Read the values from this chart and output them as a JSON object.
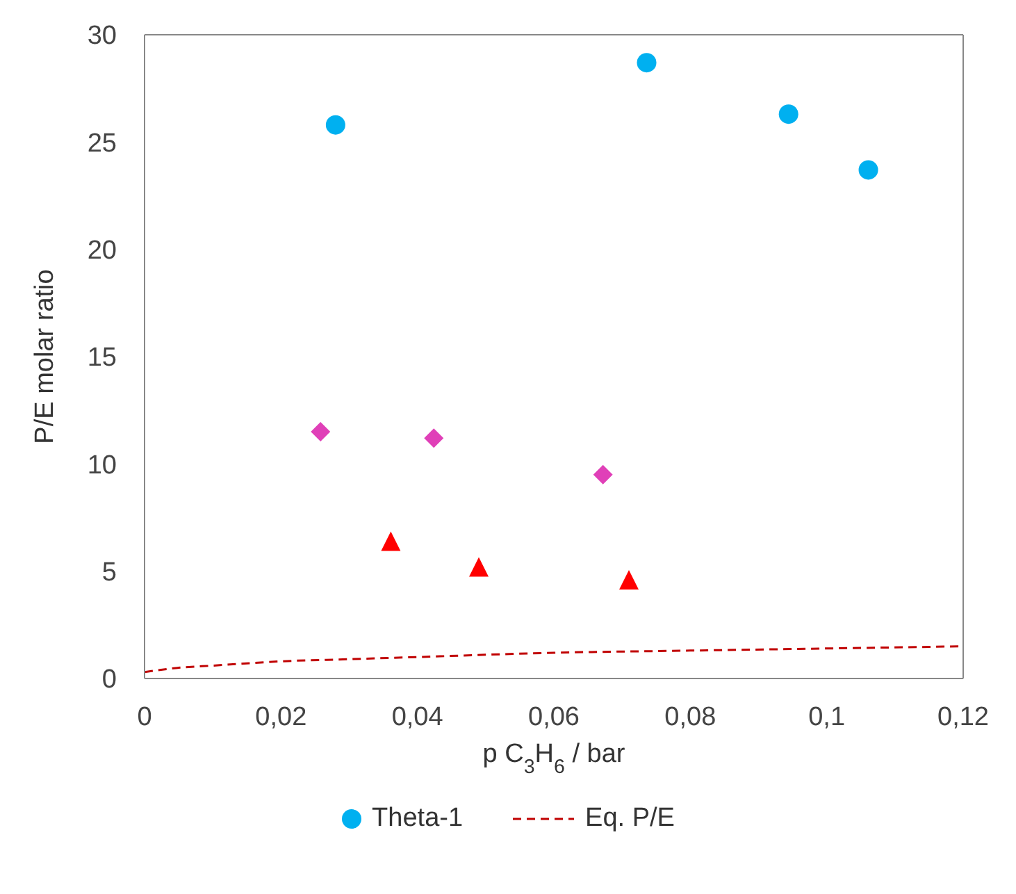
{
  "chart_data": {
    "type": "scatter",
    "xlabel": "p C$_{3}$H$_{6}$ / bar",
    "ylabel": "P/E molar ratio",
    "xlim": [
      0,
      0.12
    ],
    "xticks": [
      0,
      {
        "value": 0.02,
        "label": "0,02"
      },
      {
        "value": 0.04,
        "label": "0,04"
      },
      {
        "value": 0.06,
        "label": "0,06"
      },
      {
        "value": 0.08,
        "label": "0,08"
      },
      {
        "value": 0.1,
        "label": "0,1"
      },
      {
        "value": 0.12,
        "label": "0,12"
      }
    ],
    "ylim": [
      0,
      30
    ],
    "yticks": [
      0,
      5,
      10,
      15,
      20,
      25,
      30
    ],
    "grid": false,
    "legend": "bottom",
    "series": [
      {
        "name": "Theta-1",
        "color": "#00b0f0",
        "marker": "circle",
        "x": [
          0.028,
          0.0736,
          0.0944,
          0.1061
        ],
        "values": [
          25.8,
          28.7,
          26.3,
          23.7
        ]
      },
      {
        "color": "#ff0000",
        "marker": "triangle",
        "x": [
          0.0361,
          0.049,
          0.071
        ],
        "values": [
          6.4,
          5.2,
          4.6
        ]
      },
      {
        "color": "#e040b8",
        "marker": "diamond",
        "x": [
          0.0258,
          0.0424,
          0.0672
        ],
        "values": [
          11.5,
          11.2,
          9.5
        ]
      },
      {
        "name": "Eq. P/E",
        "type": "line",
        "color": "#c00000",
        "marker": "none",
        "line_style": "dashed",
        "x": [
          0,
          0.005,
          0.01,
          0.02,
          0.03,
          0.04,
          0.06,
          0.08,
          0.1,
          0.12
        ],
        "values": [
          0.3,
          0.5,
          0.6,
          0.8,
          0.9,
          1.0,
          1.2,
          1.3,
          1.4,
          1.5
        ]
      }
    ]
  }
}
